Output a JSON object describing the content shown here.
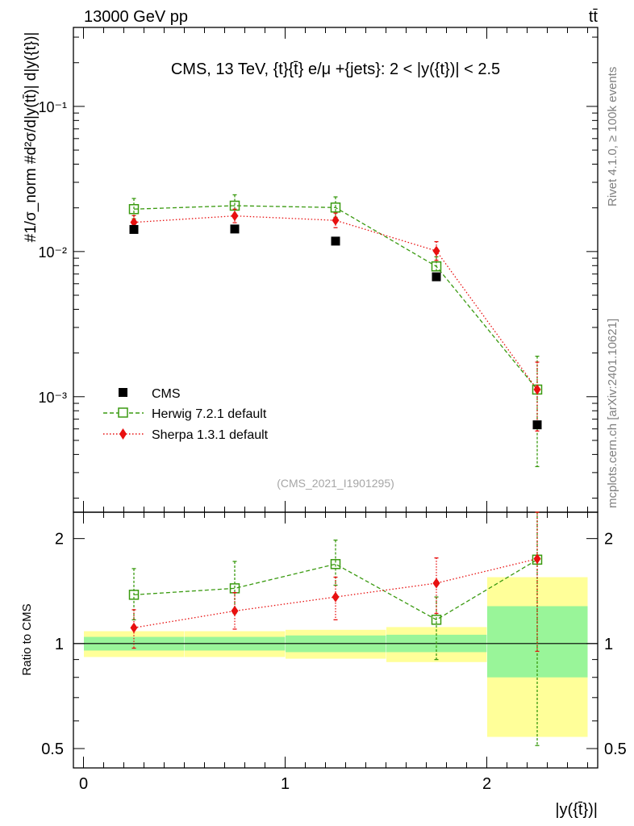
{
  "header": {
    "beam_label": "13000 GeV pp",
    "process_label": "tt̄"
  },
  "side_labels": {
    "rivet": "Rivet 4.1.0, ≥ 100k events",
    "source": "mcplots.cern.ch [arXiv:2401.10621]"
  },
  "watermark": "(CMS_2021_I1901295)",
  "chart_data": [
    {
      "type": "scatter",
      "panel": "main",
      "title": "CMS, 13 TeV, {t}{t̄} e/μ +{jets}: 2 < |y({t})| < 2.5",
      "ylabel": "#1/σ_norm #d²σ/d|y(tt̄)| d|y({t})|",
      "yscale": "log",
      "ylim": [
        0.00016,
        0.35
      ],
      "xlim": [
        -0.05,
        2.55
      ],
      "x": [
        0.25,
        0.75,
        1.25,
        1.75,
        2.25
      ],
      "y_tick_labels": [
        "10⁻³",
        "10⁻²",
        "10⁻¹"
      ],
      "series": [
        {
          "name": "CMS",
          "color": "#000000",
          "marker": "square-filled",
          "line": "none",
          "values": [
            0.0142,
            0.0143,
            0.0118,
            0.0067,
            0.00064
          ]
        },
        {
          "name": "Herwig 7.2.1 default",
          "color": "#3a9a10",
          "marker": "square-open",
          "line": "dashed",
          "values": [
            0.0196,
            0.0207,
            0.0201,
            0.0079,
            0.00112
          ],
          "err_up": [
            0.0232,
            0.0246,
            0.0238,
            0.0092,
            0.0019
          ],
          "err_down": [
            0.0168,
            0.0176,
            0.0172,
            0.0067,
            0.00033
          ]
        },
        {
          "name": "Sherpa 1.3.1 default",
          "color": "#e81010",
          "marker": "diamond-filled",
          "line": "dotted",
          "values": [
            0.0159,
            0.0176,
            0.0164,
            0.0101,
            0.00112
          ],
          "err_up": [
            0.0177,
            0.0196,
            0.0184,
            0.0117,
            0.00173
          ],
          "err_down": [
            0.0142,
            0.0158,
            0.0146,
            0.0087,
            0.00058
          ]
        }
      ]
    },
    {
      "type": "scatter",
      "panel": "ratio",
      "ylabel": "Ratio to CMS",
      "xlabel": "|y({t̄})|",
      "yscale": "log",
      "ylim": [
        0.44,
        2.38
      ],
      "xlim": [
        -0.05,
        2.55
      ],
      "x_ticks": [
        0,
        1,
        2
      ],
      "x_tick_labels": [
        "0",
        "1",
        "2"
      ],
      "y_ticks": [
        0.5,
        1,
        2
      ],
      "y_tick_labels": [
        "0.5",
        "1",
        "2"
      ],
      "x": [
        0.25,
        0.75,
        1.25,
        1.75,
        2.25
      ],
      "bins": [
        [
          0,
          0.5
        ],
        [
          0.5,
          1.0
        ],
        [
          1.0,
          1.5
        ],
        [
          1.5,
          2.0
        ],
        [
          2.0,
          2.5
        ]
      ],
      "band_green": {
        "lo": [
          0.955,
          0.955,
          0.945,
          0.945,
          0.8
        ],
        "hi": [
          1.045,
          1.045,
          1.055,
          1.06,
          1.28
        ]
      },
      "band_yellow": {
        "lo": [
          0.915,
          0.915,
          0.905,
          0.885,
          0.54
        ],
        "hi": [
          1.085,
          1.085,
          1.095,
          1.115,
          1.55
        ]
      },
      "series": [
        {
          "name": "Herwig 7.2.1 default",
          "color": "#3a9a10",
          "values": [
            1.38,
            1.44,
            1.69,
            1.17,
            1.74
          ],
          "err_up": [
            1.64,
            1.72,
            1.98,
            1.36,
            2.38
          ],
          "err_down": [
            1.17,
            1.22,
            1.47,
            0.9,
            0.51
          ]
        },
        {
          "name": "Sherpa 1.3.1 default",
          "color": "#e81010",
          "values": [
            1.11,
            1.24,
            1.36,
            1.49,
            1.75
          ],
          "err_up": [
            1.25,
            1.4,
            1.55,
            1.76,
            2.38
          ],
          "err_down": [
            0.97,
            1.1,
            1.17,
            1.22,
            0.95
          ]
        }
      ]
    }
  ]
}
